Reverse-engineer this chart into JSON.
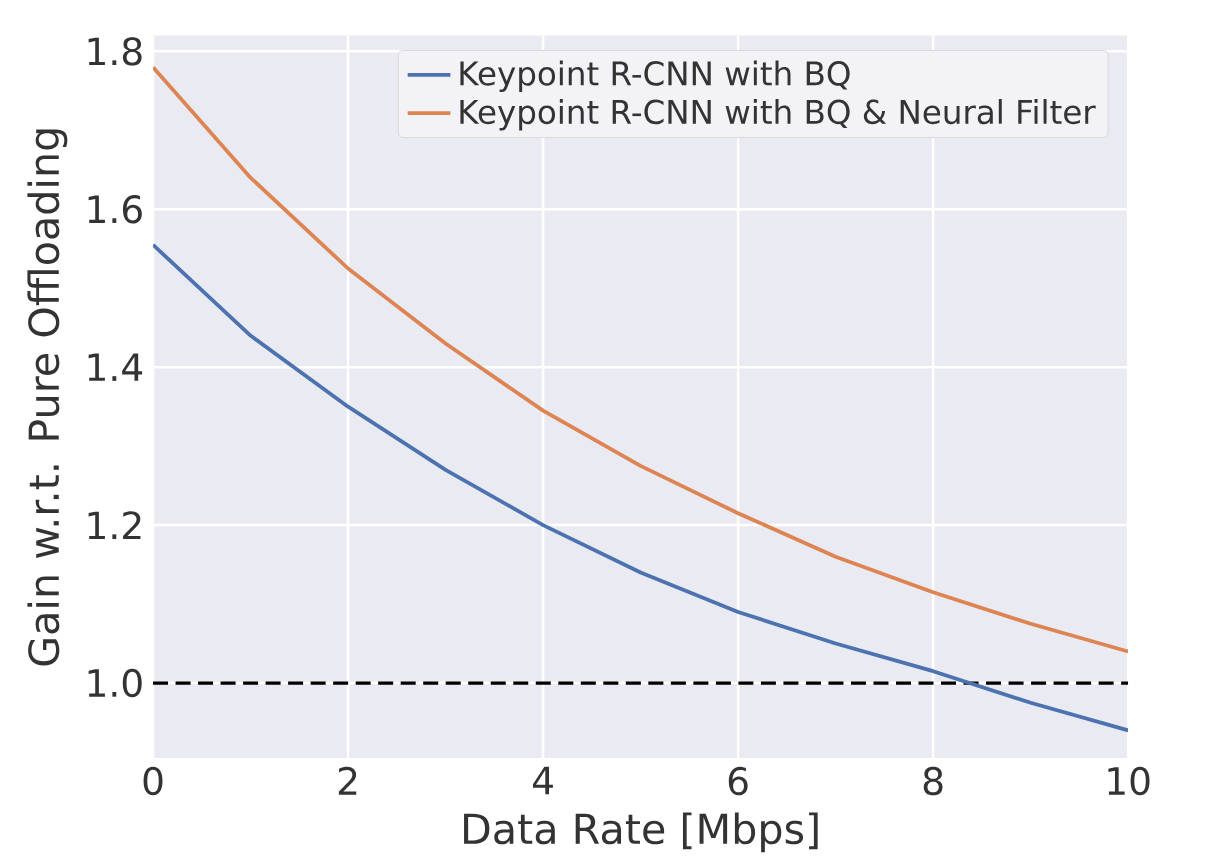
{
  "chart_data": {
    "type": "line",
    "xlabel": "Data Rate [Mbps]",
    "ylabel": "Gain w.r.t. Pure Offloading",
    "x": [
      0,
      1,
      2,
      3,
      4,
      5,
      6,
      7,
      8,
      9,
      10
    ],
    "series": [
      {
        "name": "Keypoint R-CNN with BQ",
        "color": "#4c72b0",
        "values": [
          1.555,
          1.44,
          1.35,
          1.27,
          1.2,
          1.14,
          1.09,
          1.05,
          1.015,
          0.975,
          0.94
        ]
      },
      {
        "name": "Keypoint R-CNN with BQ & Neural Filter",
        "color": "#dd8452",
        "values": [
          1.78,
          1.64,
          1.525,
          1.43,
          1.345,
          1.275,
          1.215,
          1.16,
          1.115,
          1.075,
          1.04
        ]
      }
    ],
    "xlim": [
      0,
      10
    ],
    "ylim": [
      0.905,
      1.82
    ],
    "xticks": [
      0,
      2,
      4,
      6,
      8,
      10
    ],
    "yticks": [
      {
        "value": 1.0,
        "label": "1.0"
      },
      {
        "value": 1.2,
        "label": "1.2"
      },
      {
        "value": 1.4,
        "label": "1.4"
      },
      {
        "value": 1.6,
        "label": "1.6"
      },
      {
        "value": 1.8,
        "label": "1.8"
      }
    ],
    "ref_lines": [
      {
        "axis": "y",
        "value": 1.0,
        "color": "#000000",
        "line_style": "dashed"
      }
    ],
    "grid": true,
    "legend": "top right",
    "marker": "none",
    "line_style": "solid"
  }
}
